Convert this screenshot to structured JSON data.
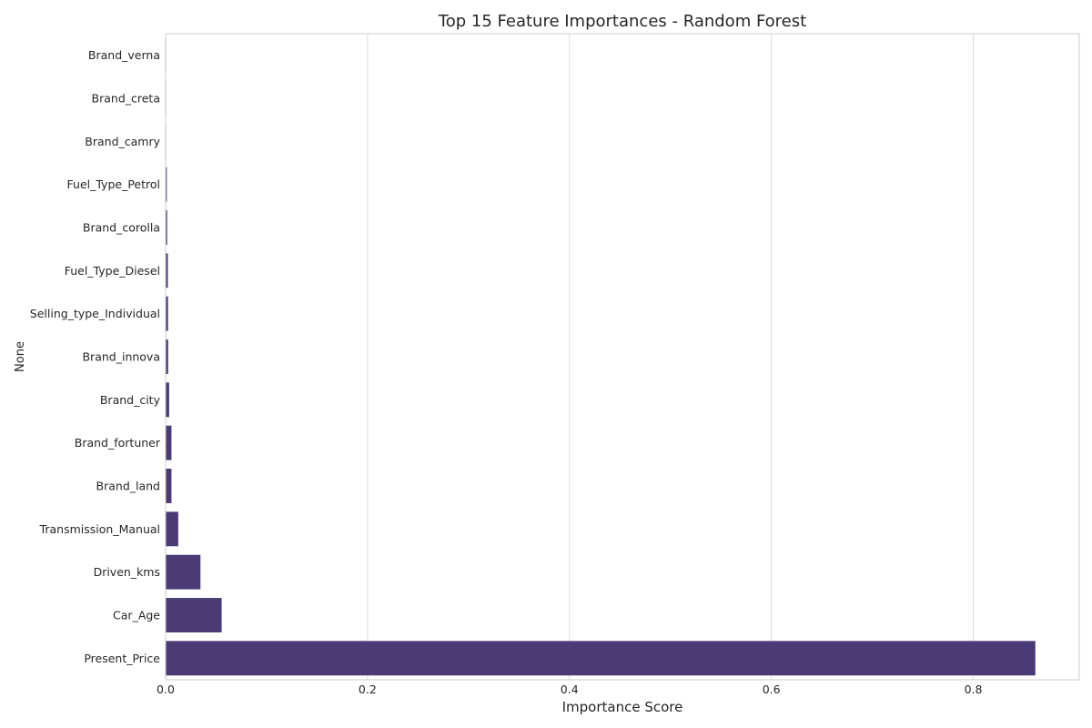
{
  "chart_data": {
    "type": "bar",
    "orientation": "horizontal",
    "title": "Top 15 Feature Importances - Random Forest",
    "xlabel": "Importance Score",
    "ylabel": "None",
    "xlim": [
      0,
      0.905
    ],
    "xticks": [
      0.0,
      0.2,
      0.4,
      0.6,
      0.8
    ],
    "xtick_labels": [
      "0.0",
      "0.2",
      "0.4",
      "0.6",
      "0.8"
    ],
    "grid": "vertical",
    "bar_color": "#4a3a75",
    "categories": [
      "Brand_verna",
      "Brand_creta",
      "Brand_camry",
      "Fuel_Type_Petrol",
      "Brand_corolla",
      "Fuel_Type_Diesel",
      "Selling_type_Individual",
      "Brand_innova",
      "Brand_city",
      "Brand_fortuner",
      "Brand_land",
      "Transmission_Manual",
      "Driven_kms",
      "Car_Age",
      "Present_Price"
    ],
    "values": [
      0.0002,
      0.0003,
      0.0005,
      0.0012,
      0.0015,
      0.0022,
      0.0024,
      0.0025,
      0.0035,
      0.0058,
      0.0058,
      0.0125,
      0.0345,
      0.0555,
      0.8615
    ]
  }
}
